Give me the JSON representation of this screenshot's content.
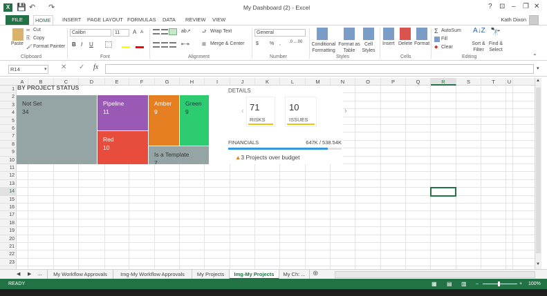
{
  "titlebar": {
    "title": "My Dashboard (2) - Excel",
    "logo": "X",
    "help": "?",
    "restore": "⊡",
    "minimize": "–",
    "maximize": "❐",
    "close": "✕"
  },
  "tabs": {
    "file": "FILE",
    "home": "HOME",
    "insert": "INSERT",
    "page_layout": "PAGE LAYOUT",
    "formulas": "FORMULAS",
    "data": "DATA",
    "review": "REVIEW",
    "view": "VIEW"
  },
  "user": "Kath Dixon",
  "ribbon": {
    "clipboard": {
      "paste": "Paste",
      "cut": "Cut",
      "copy": "Copy",
      "format_painter": "Format Painter",
      "group": "Clipboard"
    },
    "font": {
      "name": "Calibri",
      "size": "11",
      "bold": "B",
      "italic": "I",
      "underline": "U",
      "grow": "A",
      "shrink": "A",
      "group": "Font"
    },
    "alignment": {
      "wrap": "Wrap Text",
      "merge": "Merge & Center",
      "group": "Alignment"
    },
    "number": {
      "format": "General",
      "currency": "$",
      "percent": "%",
      "comma": ",",
      "group": "Number"
    },
    "styles": {
      "conditional": "Conditional Formatting",
      "format_table": "Format as Table",
      "cell_styles": "Cell Styles",
      "group": "Styles"
    },
    "cells": {
      "insert": "Insert",
      "delete": "Delete",
      "format": "Format",
      "group": "Cells"
    },
    "editing": {
      "autosum": "AutoSum",
      "fill": "Fill",
      "clear": "Clear",
      "sort": "Sort & Filter",
      "find": "Find & Select",
      "group": "Editing"
    }
  },
  "formula_bar": {
    "name_box": "R14",
    "fx": "fx",
    "value": ""
  },
  "columns": [
    "A",
    "B",
    "C",
    "D",
    "E",
    "F",
    "G",
    "H",
    "I",
    "J",
    "K",
    "L",
    "M",
    "N",
    "O",
    "P",
    "Q",
    "R",
    "S",
    "T",
    "U"
  ],
  "rows": [
    "1",
    "2",
    "3",
    "4",
    "5",
    "6",
    "7",
    "8",
    "9",
    "10",
    "11",
    "12",
    "13",
    "14",
    "15",
    "16",
    "17",
    "18",
    "19",
    "20",
    "21",
    "22",
    "23"
  ],
  "selected": {
    "col": "R",
    "row": "14"
  },
  "dashboard": {
    "heading": "BY PROJECT STATUS",
    "tiles": [
      {
        "label": "Not Set",
        "value": "34",
        "color": "#95a5a6"
      },
      {
        "label": "Pipeline",
        "value": "11",
        "color": "#9b59b6"
      },
      {
        "label": "Red",
        "value": "10",
        "color": "#e74c3c"
      },
      {
        "label": "Amber",
        "value": "9",
        "color": "#e67e22"
      },
      {
        "label": "Green",
        "value": "9",
        "color": "#2ecc71"
      },
      {
        "label": "Is a Template",
        "value": "7",
        "color": "#95a5a6"
      }
    ],
    "details_heading": "DETAILS",
    "risks_value": "71",
    "risks_label": "RISKS",
    "issues_value": "10",
    "issues_label": "ISSUES",
    "financials_label": "FINANCIALS",
    "financials_value": "647K / 538.54K",
    "financials_progress": 0.88,
    "budget_count": "3",
    "budget_text": " Projects over budget",
    "accent": "#f1c40f",
    "bar_color": "#3498db",
    "prev": "‹",
    "next": "›"
  },
  "sheet_tabs": [
    "My Workflow Approvals",
    "Img-My Workflow Approvals",
    "My Projects",
    "Img-My Projects",
    "My Ch: ..."
  ],
  "active_sheet": "Img-My Projects",
  "sheet_nav": {
    "prev": "◀",
    "next": "▶",
    "more": "...",
    "add": "⊕"
  },
  "status": {
    "ready": "READY",
    "zoom": "100%"
  }
}
